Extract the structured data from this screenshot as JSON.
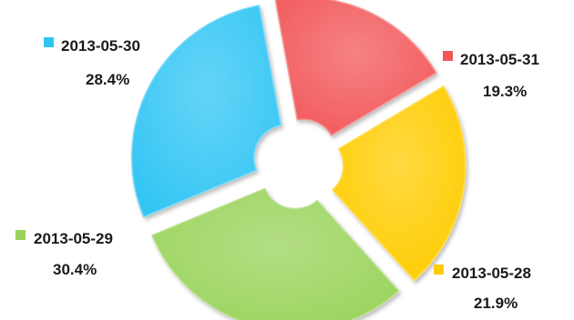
{
  "chart_data": {
    "type": "pie",
    "style": "exploded-donut",
    "slices": [
      {
        "label": "2013-05-31",
        "value": 19.3,
        "percent_label": "19.3%",
        "color": "#f2585a"
      },
      {
        "label": "2013-05-28",
        "value": 21.9,
        "percent_label": "21.9%",
        "color": "#ffcc00"
      },
      {
        "label": "2013-05-29",
        "value": 30.4,
        "percent_label": "30.4%",
        "color": "#9ad35b"
      },
      {
        "label": "2013-05-30",
        "value": 28.4,
        "percent_label": "28.4%",
        "color": "#31c5f4"
      }
    ],
    "legend": "inline-labels"
  }
}
